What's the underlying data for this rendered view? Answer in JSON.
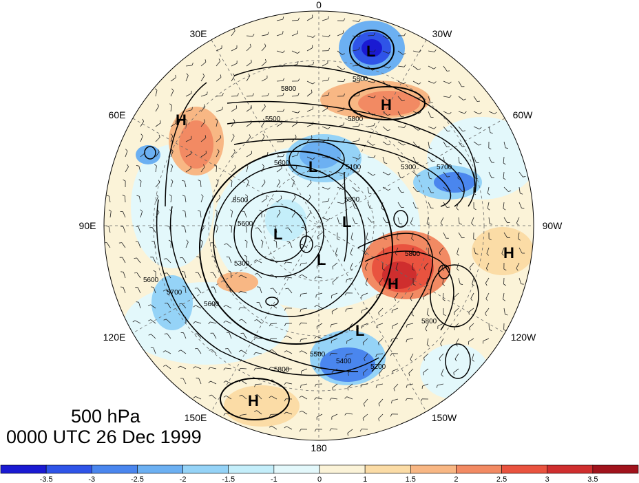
{
  "title": {
    "level": "500 hPa",
    "time": "0000 UTC 26 Dec 1999"
  },
  "longitude_labels": [
    {
      "id": "0",
      "text": "0"
    },
    {
      "id": "30w",
      "text": "30W"
    },
    {
      "id": "60w",
      "text": "60W"
    },
    {
      "id": "90w",
      "text": "90W"
    },
    {
      "id": "120w",
      "text": "120W"
    },
    {
      "id": "150w",
      "text": "150W"
    },
    {
      "id": "180",
      "text": "180"
    },
    {
      "id": "150e",
      "text": "150E"
    },
    {
      "id": "120e",
      "text": "120E"
    },
    {
      "id": "90e",
      "text": "90E"
    },
    {
      "id": "60e",
      "text": "60E"
    },
    {
      "id": "30e",
      "text": "30E"
    }
  ],
  "pressure_centers": [
    {
      "type": "L",
      "text": "L"
    },
    {
      "type": "H",
      "text": "H"
    },
    {
      "type": "H",
      "text": "H"
    },
    {
      "type": "L",
      "text": "L"
    },
    {
      "type": "L",
      "text": "L"
    },
    {
      "type": "L",
      "text": "L"
    },
    {
      "type": "L",
      "text": "L"
    },
    {
      "type": "H",
      "text": "H"
    },
    {
      "type": "H",
      "text": "H"
    },
    {
      "type": "L",
      "text": "L"
    },
    {
      "type": "H",
      "text": "H"
    }
  ],
  "contour_labels": [
    "5800",
    "5800",
    "5800",
    "5500",
    "5100",
    "5300",
    "5700",
    "5600",
    "5500",
    "5300",
    "5600",
    "5800",
    "5800",
    "5600",
    "5700",
    "5600",
    "5800",
    "5500",
    "5400",
    "5200",
    "5800"
  ],
  "colorbar": {
    "ticks": [
      "-3.5",
      "-3",
      "-2.5",
      "-2",
      "-1.5",
      "-1",
      "0",
      "1",
      "1.5",
      "2",
      "2.5",
      "3",
      "3.5"
    ],
    "colors": [
      "#1a1ad2",
      "#2f54e8",
      "#4a86ee",
      "#6cb0f2",
      "#95d3f7",
      "#c4eefa",
      "#e3f8fb",
      "#fbf3d8",
      "#fbdca6",
      "#f8b784",
      "#f28a63",
      "#e9533f",
      "#cf2e2e",
      "#a0131c"
    ]
  }
}
